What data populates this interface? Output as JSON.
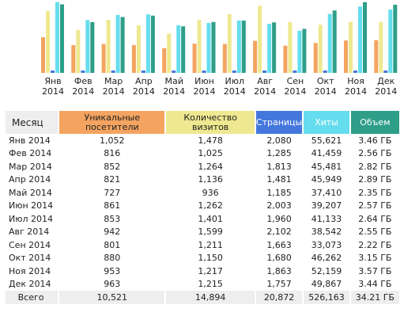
{
  "colors": {
    "unique": "#f4a460",
    "visits": "#eee890",
    "pages": "#4477dd",
    "hits": "#66ddee",
    "bandwidth": "#2e9e88",
    "header_gray": "#eeeeee"
  },
  "chart_data": {
    "type": "bar",
    "categories": [
      "Янв\n2014",
      "Фев\n2014",
      "Мар\n2014",
      "Апр\n2014",
      "Май\n2014",
      "Июн\n2014",
      "Июл\n2014",
      "Авг\n2014",
      "Сен\n2014",
      "Окт\n2014",
      "Ноя\n2014",
      "Дек\n2014"
    ],
    "series": [
      {
        "name": "Уникальные посетители",
        "values": [
          1052,
          816,
          852,
          821,
          727,
          861,
          853,
          942,
          801,
          880,
          953,
          963
        ]
      },
      {
        "name": "Количество визитов",
        "values": [
          1478,
          1025,
          1264,
          1136,
          936,
          1262,
          1401,
          1599,
          1211,
          1150,
          1217,
          1215
        ]
      },
      {
        "name": "Страницы",
        "values": [
          2080,
          1285,
          1813,
          1481,
          1185,
          2003,
          1960,
          2102,
          1663,
          1680,
          1863,
          1757
        ]
      },
      {
        "name": "Хиты",
        "values": [
          55621,
          41459,
          45481,
          45949,
          37410,
          39207,
          41133,
          38542,
          33073,
          46262,
          52159,
          49867
        ]
      },
      {
        "name": "Объем",
        "values": [
          3.46,
          2.56,
          2.82,
          2.89,
          2.35,
          2.57,
          2.64,
          2.55,
          2.22,
          3.15,
          3.57,
          3.44
        ]
      }
    ]
  },
  "table": {
    "headers": {
      "month": "Месяц",
      "unique": "Уникальные посетители",
      "visits": "Количество визитов",
      "pages": "Страницы",
      "hits": "Хиты",
      "bandwidth": "Объем"
    },
    "rows": [
      {
        "month": "Янв 2014",
        "unique": "1,052",
        "visits": "1,478",
        "pages": "2,080",
        "hits": "55,621",
        "bandwidth": "3.46 ГБ"
      },
      {
        "month": "Фев 2014",
        "unique": "816",
        "visits": "1,025",
        "pages": "1,285",
        "hits": "41,459",
        "bandwidth": "2.56 ГБ"
      },
      {
        "month": "Мар 2014",
        "unique": "852",
        "visits": "1,264",
        "pages": "1,813",
        "hits": "45,481",
        "bandwidth": "2.82 ГБ"
      },
      {
        "month": "Апр 2014",
        "unique": "821",
        "visits": "1,136",
        "pages": "1,481",
        "hits": "45,949",
        "bandwidth": "2.89 ГБ"
      },
      {
        "month": "Май 2014",
        "unique": "727",
        "visits": "936",
        "pages": "1,185",
        "hits": "37,410",
        "bandwidth": "2.35 ГБ"
      },
      {
        "month": "Июн 2014",
        "unique": "861",
        "visits": "1,262",
        "pages": "2,003",
        "hits": "39,207",
        "bandwidth": "2.57 ГБ"
      },
      {
        "month": "Июл 2014",
        "unique": "853",
        "visits": "1,401",
        "pages": "1,960",
        "hits": "41,133",
        "bandwidth": "2.64 ГБ"
      },
      {
        "month": "Авг 2014",
        "unique": "942",
        "visits": "1,599",
        "pages": "2,102",
        "hits": "38,542",
        "bandwidth": "2.55 ГБ"
      },
      {
        "month": "Сен 2014",
        "unique": "801",
        "visits": "1,211",
        "pages": "1,663",
        "hits": "33,073",
        "bandwidth": "2.22 ГБ"
      },
      {
        "month": "Окт 2014",
        "unique": "880",
        "visits": "1,150",
        "pages": "1,680",
        "hits": "46,262",
        "bandwidth": "3.15 ГБ"
      },
      {
        "month": "Ноя 2014",
        "unique": "953",
        "visits": "1,217",
        "pages": "1,863",
        "hits": "52,159",
        "bandwidth": "3.57 ГБ"
      },
      {
        "month": "Дек 2014",
        "unique": "963",
        "visits": "1,215",
        "pages": "1,757",
        "hits": "49,867",
        "bandwidth": "3.44 ГБ"
      }
    ],
    "total": {
      "month": "Всего",
      "unique": "10,521",
      "visits": "14,894",
      "pages": "20,872",
      "hits": "526,163",
      "bandwidth": "34.21 ГБ"
    }
  }
}
